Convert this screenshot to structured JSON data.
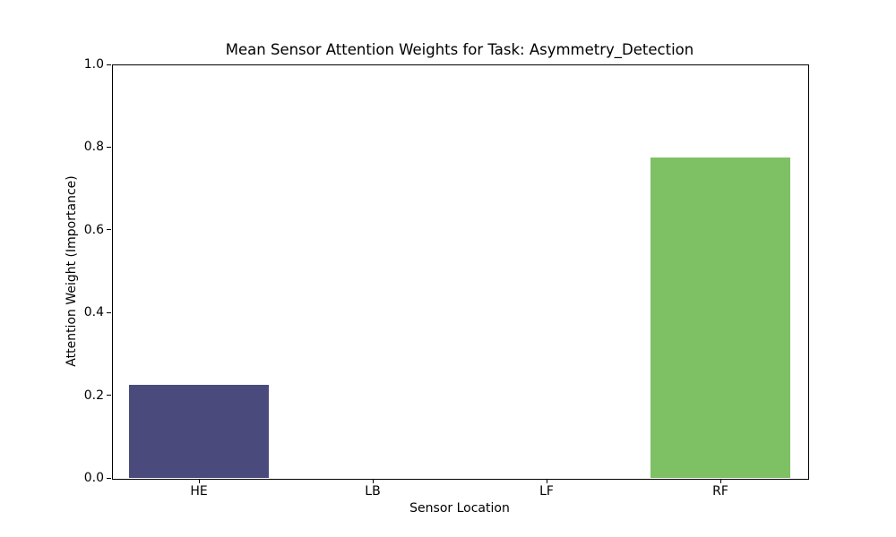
{
  "figure": {
    "background": "#ffffff",
    "text_color": "#000000"
  },
  "chart_data": {
    "type": "bar",
    "title": "Mean Sensor Attention Weights for Task: Asymmetry_Detection",
    "xlabel": "Sensor Location",
    "ylabel": "Attention Weight (Importance)",
    "categories": [
      "HE",
      "LB",
      "LF",
      "RF"
    ],
    "values": [
      0.225,
      0.0,
      0.0,
      0.775
    ],
    "colors": [
      "#4a4b7c",
      null,
      null,
      "#7ec164"
    ],
    "ylim": [
      0.0,
      1.0
    ],
    "yticks": [
      0.0,
      0.2,
      0.4,
      0.6,
      0.8,
      1.0
    ],
    "ytick_labels": [
      "0.0",
      "0.2",
      "0.4",
      "0.6",
      "0.8",
      "1.0"
    ],
    "bar_width_frac": 0.8,
    "grid": false,
    "legend": null,
    "frame": true
  }
}
